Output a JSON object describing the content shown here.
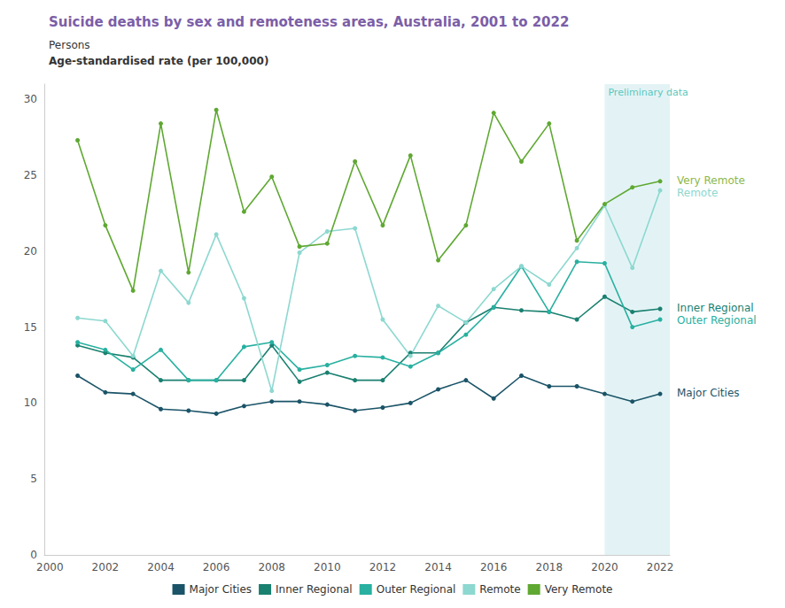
{
  "chart_data": {
    "type": "line",
    "title": "Suicide deaths by sex and remoteness areas, Australia, 2001 to 2022",
    "title_color": "#7B5EA7",
    "subtitle": [
      "Persons",
      "Age-standardised rate (per 100,000)"
    ],
    "x": [
      2001,
      2002,
      2003,
      2004,
      2005,
      2006,
      2007,
      2008,
      2009,
      2010,
      2011,
      2012,
      2013,
      2014,
      2015,
      2016,
      2017,
      2018,
      2019,
      2020,
      2021,
      2022
    ],
    "series": [
      {
        "name": "Major Cities",
        "color": "#1B5468",
        "values": [
          11.8,
          10.7,
          10.6,
          9.6,
          9.5,
          9.3,
          9.8,
          10.1,
          10.1,
          9.9,
          9.5,
          9.7,
          10.0,
          10.9,
          11.5,
          10.3,
          11.8,
          11.1,
          11.1,
          10.6,
          10.1,
          10.6
        ]
      },
      {
        "name": "Inner Regional",
        "color": "#1A8070",
        "values": [
          13.8,
          13.3,
          13.0,
          11.5,
          11.5,
          11.5,
          11.5,
          13.8,
          11.4,
          12.0,
          11.5,
          11.5,
          13.3,
          13.3,
          15.3,
          16.3,
          16.1,
          16.0,
          15.5,
          17.0,
          16.0,
          16.2
        ]
      },
      {
        "name": "Outer Regional",
        "color": "#28B0A0",
        "values": [
          14.0,
          13.5,
          12.2,
          13.5,
          11.5,
          11.5,
          13.7,
          14.0,
          12.2,
          12.5,
          13.1,
          13.0,
          12.4,
          13.3,
          14.5,
          16.3,
          19.0,
          16.0,
          19.3,
          19.2,
          15.0,
          15.5
        ]
      },
      {
        "name": "Remote",
        "color": "#8DD8D0",
        "values": [
          15.6,
          15.4,
          13.1,
          18.7,
          16.6,
          21.1,
          16.9,
          10.8,
          19.9,
          21.3,
          21.5,
          15.5,
          13.1,
          16.4,
          15.3,
          17.5,
          19.0,
          17.8,
          20.2,
          23.0,
          18.9,
          24.0
        ]
      },
      {
        "name": "Very Remote",
        "color": "#5FA832",
        "values": [
          27.3,
          21.7,
          17.4,
          28.4,
          18.6,
          29.3,
          22.6,
          24.9,
          20.3,
          20.5,
          25.9,
          21.7,
          26.3,
          19.4,
          21.7,
          29.1,
          25.9,
          28.4,
          20.7,
          23.1,
          24.2,
          24.6
        ]
      }
    ],
    "marker": "circle",
    "xlim": [
      1999.8,
      2022.35
    ],
    "xticks": [
      2000,
      2002,
      2004,
      2006,
      2008,
      2010,
      2012,
      2014,
      2016,
      2018,
      2020,
      2022
    ],
    "ylim": [
      0,
      31
    ],
    "yticks": [
      0,
      5,
      10,
      15,
      20,
      25,
      30
    ],
    "grid": false,
    "legend": "bottom",
    "annotations": [
      {
        "text": "Preliminary data",
        "x_from": 2020,
        "color": "#5BC8C0",
        "fill": "#E3F3F5"
      },
      {
        "text": "Very Remote",
        "series": "Very Remote",
        "color": "#8DB84A"
      },
      {
        "text": "Remote",
        "series": "Remote",
        "color": "#8DD8D0"
      },
      {
        "text": "Inner Regional",
        "series": "Inner Regional",
        "color": "#1A8070"
      },
      {
        "text": "Outer Regional",
        "series": "Outer Regional",
        "color": "#28B0A0"
      },
      {
        "text": "Major Cities",
        "series": "Major Cities",
        "color": "#1B5468"
      }
    ]
  }
}
